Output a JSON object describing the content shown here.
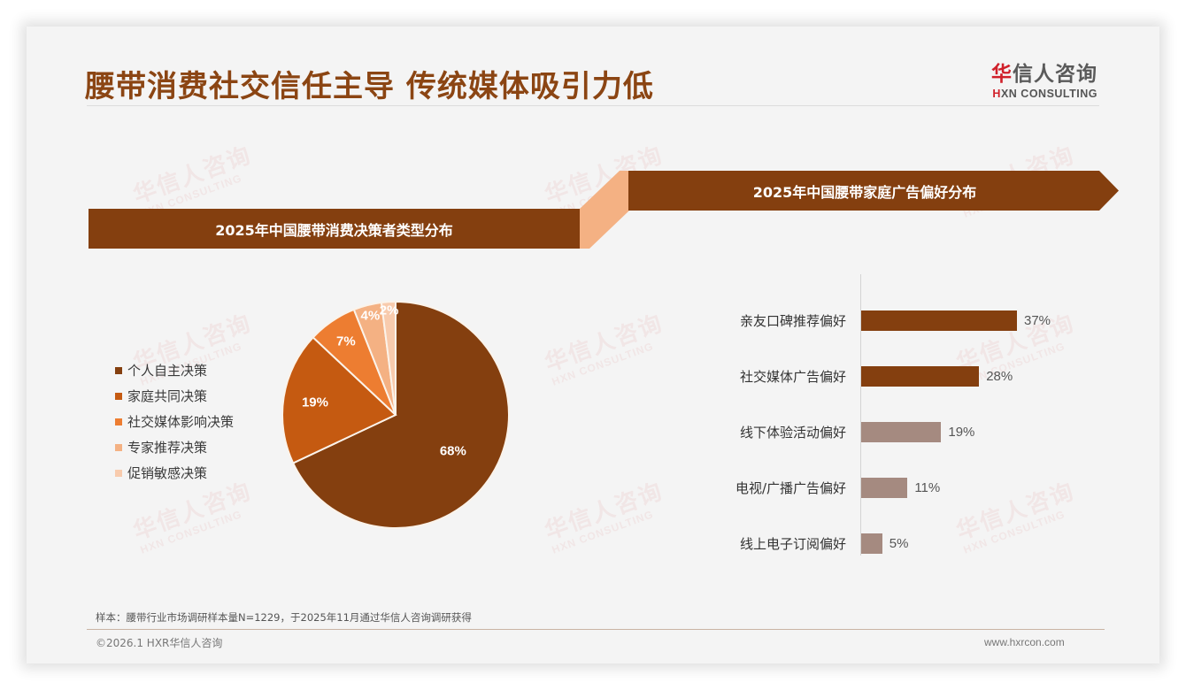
{
  "header": {
    "title": "腰带消费社交信任主导 传统媒体吸引力低",
    "logo": {
      "cn_first": "华",
      "cn_rest": "信人咨询",
      "en_mark": "H",
      "en_rest": "XN CONSULTING"
    }
  },
  "watermark": {
    "cn": "华信人咨询",
    "en": "HXN CONSULTING"
  },
  "left_panel": {
    "banner": "2025年中国腰带消费决策者类型分布"
  },
  "right_panel": {
    "banner": "2025年中国腰带家庭广告偏好分布"
  },
  "colors": {
    "primary": "#843f0f",
    "connector": "#f4b183",
    "bar_dark": "#843f0f",
    "bar_light": "#a58a80",
    "title": "#8b4513",
    "logo_red": "#d0202a"
  },
  "chart_data": [
    {
      "type": "pie",
      "title": "2025年中国腰带消费决策者类型分布",
      "legend_position": "left",
      "categories": [
        "个人自主决策",
        "家庭共同决策",
        "社交媒体影响决策",
        "专家推荐决策",
        "促销敏感决策"
      ],
      "values": [
        68,
        19,
        7,
        4,
        2
      ],
      "labels": [
        "68%",
        "19%",
        "7%",
        "4%",
        "2%"
      ],
      "colors": [
        "#843f0f",
        "#c55a11",
        "#ed7d31",
        "#f4b183",
        "#f8cbad"
      ],
      "unit": "%"
    },
    {
      "type": "bar",
      "orientation": "horizontal",
      "title": "2025年中国腰带家庭广告偏好分布",
      "categories": [
        "亲友口碑推荐偏好",
        "社交媒体广告偏好",
        "线下体验活动偏好",
        "电视/广播广告偏好",
        "线上电子订阅偏好"
      ],
      "values": [
        37,
        28,
        19,
        11,
        5
      ],
      "labels": [
        "37%",
        "28%",
        "19%",
        "11%",
        "5%"
      ],
      "colors": [
        "#843f0f",
        "#843f0f",
        "#a58a80",
        "#a58a80",
        "#a58a80"
      ],
      "xlim": [
        0,
        40
      ],
      "grid": false,
      "unit": "%"
    }
  ],
  "footer": {
    "note": "样本：腰带行业市场调研样本量N=1229，于2025年11月通过华信人咨询调研获得",
    "copyright": "©2026.1 HXR华信人咨询",
    "website": "www.hxrcon.com"
  }
}
